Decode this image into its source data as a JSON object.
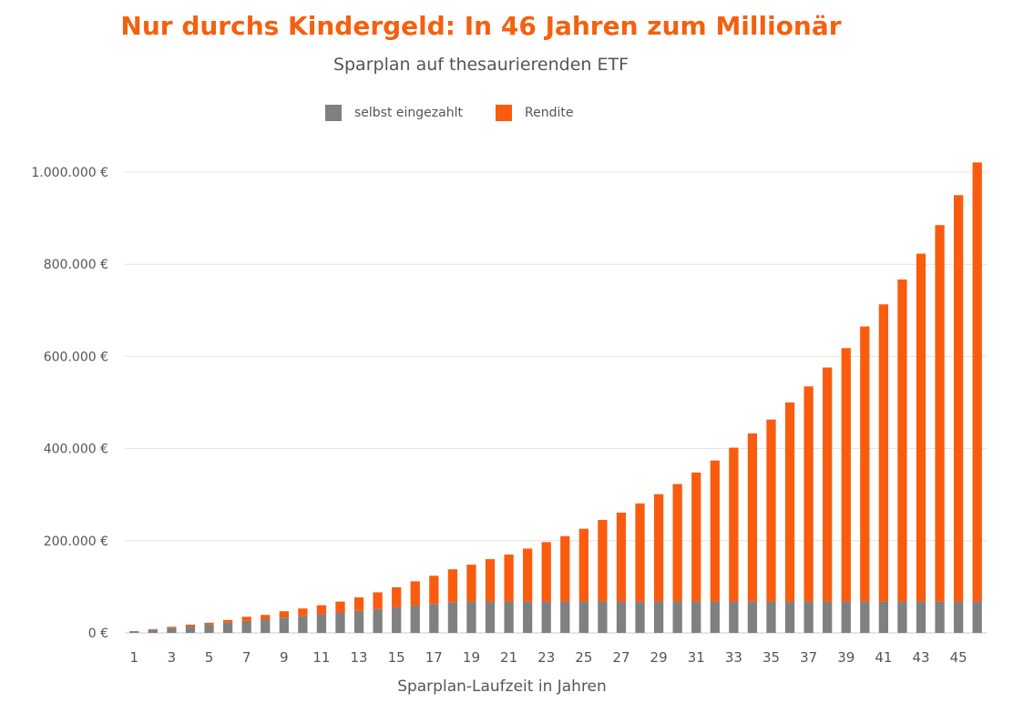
{
  "chart_data": {
    "type": "bar",
    "stacked": true,
    "title": "Nur durchs Kindergeld: In 46  Jahren zum Millionär",
    "subtitle": "Sparplan auf thesaurierenden ETF",
    "xlabel": "Sparplan-Laufzeit in Jahren",
    "ylabel": "",
    "ylim": [
      0,
      1000000
    ],
    "y_ticks": [
      "0 €",
      "200.000 €",
      "400.000 €",
      "600.000 €",
      "800.000 €",
      "1.000.000 €"
    ],
    "x_tick_labels": [
      "1",
      "3",
      "5",
      "7",
      "9",
      "11",
      "13",
      "15",
      "17",
      "19",
      "21",
      "23",
      "25",
      "27",
      "29",
      "31",
      "33",
      "35",
      "37",
      "39",
      "41",
      "43",
      "45"
    ],
    "grid": "horizontal",
    "legend_position": "top",
    "categories": [
      1,
      2,
      3,
      4,
      5,
      6,
      7,
      8,
      9,
      10,
      11,
      12,
      13,
      14,
      15,
      16,
      17,
      18,
      19,
      20,
      21,
      22,
      23,
      24,
      25,
      26,
      27,
      28,
      29,
      30,
      31,
      32,
      33,
      34,
      35,
      36,
      37,
      38,
      39,
      40,
      41,
      42,
      43,
      44,
      45,
      46
    ],
    "series": [
      {
        "name": "selbst eingezahlt",
        "color": "#808080",
        "values": [
          3700,
          7400,
          11100,
          14800,
          18500,
          22200,
          25900,
          29600,
          33300,
          37000,
          40700,
          44400,
          48100,
          51800,
          55500,
          59200,
          62900,
          66600,
          68000,
          68000,
          68000,
          68000,
          68000,
          68000,
          68000,
          68000,
          68000,
          68000,
          68000,
          68000,
          68000,
          68000,
          68000,
          68000,
          68000,
          68000,
          68000,
          68000,
          68000,
          68000,
          68000,
          68000,
          68000,
          68000,
          68000,
          68000
        ]
      },
      {
        "name": "Rendite",
        "color": "#fa5c0f",
        "values": [
          300,
          900,
          2100,
          3200,
          3500,
          5800,
          9100,
          9400,
          13700,
          16000,
          19300,
          23600,
          28900,
          36200,
          43500,
          52800,
          61100,
          71400,
          80000,
          92000,
          102000,
          115000,
          129000,
          142000,
          158000,
          177000,
          193000,
          213000,
          233000,
          255000,
          280000,
          306000,
          334000,
          365000,
          395000,
          432000,
          467000,
          508000,
          550000,
          597000,
          645000,
          699000,
          755000,
          817000,
          882000,
          953000
        ]
      }
    ]
  }
}
